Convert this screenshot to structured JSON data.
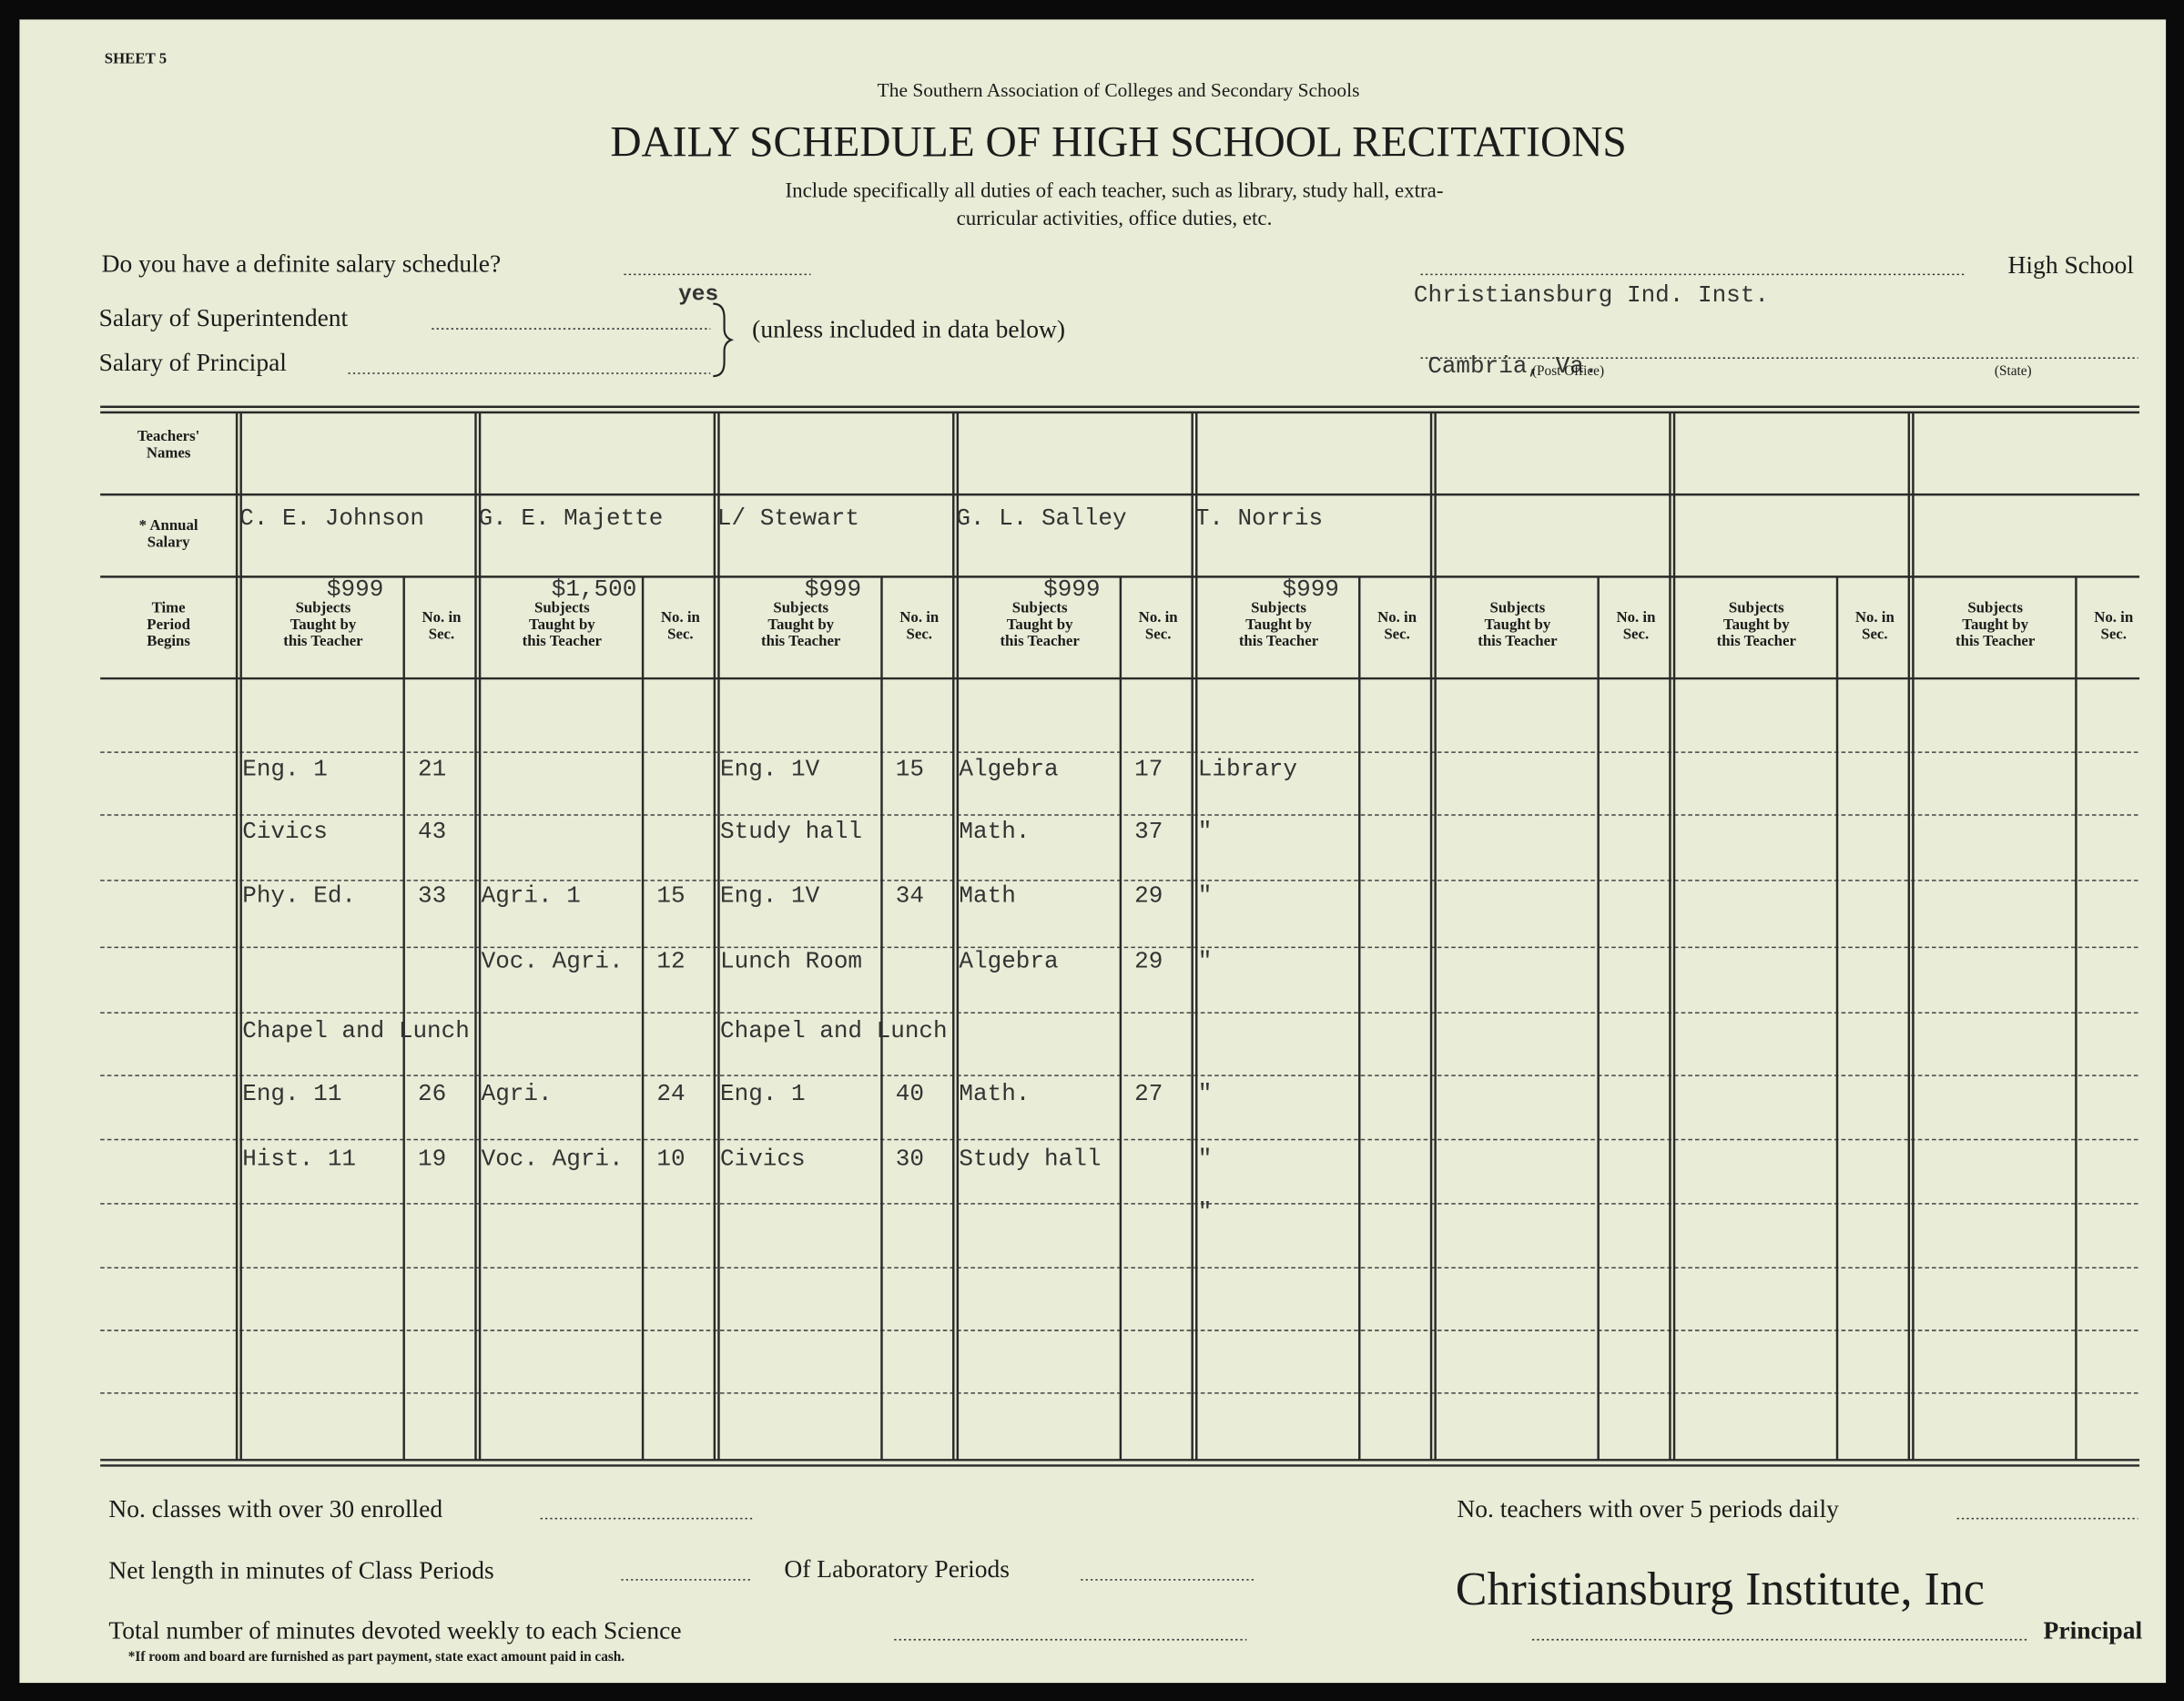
{
  "header": {
    "sheet": "SHEET 5",
    "association": "The Southern Association of Colleges and Secondary Schools",
    "title": "DAILY SCHEDULE OF HIGH SCHOOL RECITATIONS",
    "instructions": [
      "Include specifically all duties of each teacher, such as library, study hall, extra-",
      "curricular activities, office duties, etc."
    ]
  },
  "form": {
    "salary_schedule_question": "Do you have a definite salary schedule?",
    "salary_schedule_answer": "yes",
    "superintendent": "Salary of Superintendent",
    "principal": "Salary of Principal",
    "unless": "(unless included in data below)",
    "high_school": "High School",
    "school_name": "Christiansburg Ind. Inst.",
    "city": "Cambria, Va.",
    "post_office": "(Post Office)",
    "state": "(State)"
  },
  "table": {
    "row_labels": {
      "names": [
        "Teachers'",
        "Names"
      ],
      "salary": [
        "* Annual",
        "Salary"
      ],
      "time": [
        "Time",
        "Period",
        "Begins"
      ]
    },
    "subjects_header": [
      "Subjects",
      "Taught by",
      "this Teacher"
    ],
    "sec_header": [
      "No. in",
      "Sec."
    ],
    "teachers": [
      {
        "name": "C. E. Johnson",
        "salary": "$999"
      },
      {
        "name": "G. E. Majette",
        "salary": "$1,500"
      },
      {
        "name": "L/ Stewart",
        "salary": "$999"
      },
      {
        "name": "G. L. Salley",
        "salary": "$999"
      },
      {
        "name": "T. Norris",
        "salary": "$999"
      }
    ],
    "rows": [
      [
        [
          "Eng. 1",
          "21"
        ],
        null,
        [
          "Eng. 1V",
          "15"
        ],
        [
          "Algebra",
          "17"
        ],
        [
          "Library",
          null
        ]
      ],
      [
        [
          "Civics",
          "43"
        ],
        null,
        [
          "Study hall",
          null
        ],
        [
          "Math.",
          "37"
        ],
        [
          "\"",
          null
        ]
      ],
      [
        [
          "Phy. Ed.",
          "33"
        ],
        [
          "Agri. 1",
          "15"
        ],
        [
          "Eng. 1V",
          "34"
        ],
        [
          "Math",
          "29"
        ],
        [
          "\"",
          null
        ]
      ],
      [
        null,
        [
          "Voc. Agri.",
          "12"
        ],
        [
          "Lunch Room",
          null
        ],
        [
          "Algebra",
          "29"
        ],
        [
          "\"",
          null
        ]
      ],
      [
        [
          "Chapel and Lunch",
          null
        ],
        null,
        [
          "Chapel and Lunch",
          null
        ],
        null,
        null
      ],
      [
        [
          "Eng. 11",
          "26"
        ],
        [
          "Agri.",
          "24"
        ],
        [
          "Eng. 1",
          "40"
        ],
        [
          "Math.",
          "27"
        ],
        [
          "\"",
          null
        ]
      ],
      [
        [
          "Hist. 11",
          "19"
        ],
        [
          "Voc. Agri.",
          "10"
        ],
        [
          "Civics",
          "30"
        ],
        [
          "Study hall",
          null
        ],
        [
          "\"",
          null
        ]
      ],
      [
        null,
        null,
        null,
        null,
        [
          "\"",
          null
        ]
      ]
    ]
  },
  "footer": {
    "classes_over_30": "No. classes with over 30 enrolled",
    "teachers_over_5": "No. teachers with over 5 periods daily",
    "net_length": "Net length in minutes of Class Periods",
    "lab_periods": "Of Laboratory Periods",
    "science_minutes": "Total number of minutes devoted weekly to each Science",
    "principal": "Principal",
    "footnote": "*If room and board are furnished as part payment, state exact amount paid in cash.",
    "watermark": "Christiansburg Institute, Inc"
  }
}
